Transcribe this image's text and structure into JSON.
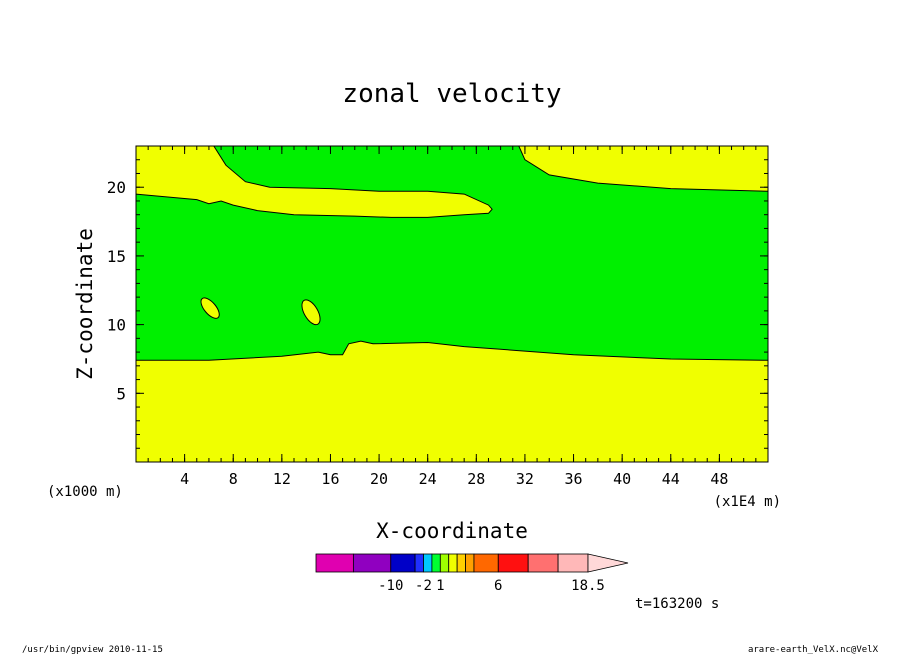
{
  "chart_data": {
    "type": "heatmap",
    "title": "zonal velocity",
    "xlabel": "X-coordinate",
    "ylabel": "Z-coordinate",
    "x_unit_left": "(x1000 m)",
    "x_unit_right": "(x1E4 m)",
    "xlim": [
      0,
      52
    ],
    "ylim": [
      0,
      23
    ],
    "xticks": [
      4,
      8,
      12,
      16,
      20,
      24,
      28,
      32,
      36,
      40,
      44,
      48
    ],
    "yticks": [
      5,
      10,
      15,
      20
    ],
    "grid": false,
    "field_colors": {
      "yellow": "#f0ff00",
      "green": "#00f000"
    },
    "regions": {
      "lower_yellow_top": [
        [
          0,
          7.4
        ],
        [
          6,
          7.4
        ],
        [
          12,
          7.7
        ],
        [
          15,
          8.0
        ],
        [
          16,
          7.8
        ],
        [
          17,
          7.8
        ],
        [
          17.5,
          8.6
        ],
        [
          18.5,
          8.8
        ],
        [
          19.5,
          8.6
        ],
        [
          24,
          8.7
        ],
        [
          27,
          8.4
        ],
        [
          30,
          8.2
        ],
        [
          36,
          7.8
        ],
        [
          44,
          7.5
        ],
        [
          52,
          7.4
        ]
      ],
      "upper_band_bottom": [
        [
          0,
          19.5
        ],
        [
          5,
          19.1
        ],
        [
          6,
          18.8
        ],
        [
          7,
          19.0
        ],
        [
          8,
          18.7
        ],
        [
          10,
          18.3
        ],
        [
          13,
          18.0
        ],
        [
          18,
          17.9
        ],
        [
          21,
          17.8
        ],
        [
          24,
          17.8
        ],
        [
          27,
          18.0
        ],
        [
          29,
          18.1
        ],
        [
          29.3,
          18.4
        ]
      ],
      "upper_band_top": [
        [
          29.3,
          18.4
        ],
        [
          29,
          18.7
        ],
        [
          27,
          19.5
        ],
        [
          24,
          19.7
        ],
        [
          20,
          19.7
        ],
        [
          16,
          19.9
        ],
        [
          11,
          20.0
        ],
        [
          9,
          20.4
        ],
        [
          7.4,
          21.6
        ],
        [
          6.4,
          23
        ]
      ],
      "top_right_yellow_edge": [
        [
          31.5,
          23
        ],
        [
          32,
          22
        ],
        [
          34,
          20.9
        ],
        [
          38,
          20.3
        ],
        [
          44,
          19.9
        ],
        [
          52,
          19.7
        ]
      ],
      "blobs": [
        {
          "cx": 6.1,
          "cy": 11.2,
          "rx": 0.3,
          "ry": 0.9,
          "rotation": -40
        },
        {
          "cx": 14.4,
          "cy": 10.9,
          "rx": 0.35,
          "ry": 1.0,
          "rotation": -30
        }
      ]
    },
    "colorbar": {
      "colors": [
        "#e000b0",
        "#9000c0",
        "#0000c8",
        "#2030ff",
        "#00c8ff",
        "#00ff30",
        "#a0ff00",
        "#f0ff00",
        "#ffd000",
        "#ffa000",
        "#ff6800",
        "#ff1010",
        "#ff7070",
        "#ffb8b8",
        "#ffd8d8"
      ],
      "widths": [
        2,
        2,
        1.3,
        0.45,
        0.45,
        0.45,
        0.45,
        0.45,
        0.45,
        0.45,
        1.3,
        1.6,
        1.6,
        1.6,
        2
      ],
      "tick_labels": [
        {
          "label": "-10",
          "index": 2
        },
        {
          "label": "-2",
          "index": 4
        },
        {
          "label": "1",
          "index": 6
        },
        {
          "label": "6",
          "index": 11
        },
        {
          "label": "18.5",
          "index": 14
        }
      ]
    },
    "time_label": "t=163200 s"
  },
  "footer": {
    "left": "/usr/bin/gpview  2010-11-15",
    "right": "arare-earth_VelX.nc@VelX"
  }
}
